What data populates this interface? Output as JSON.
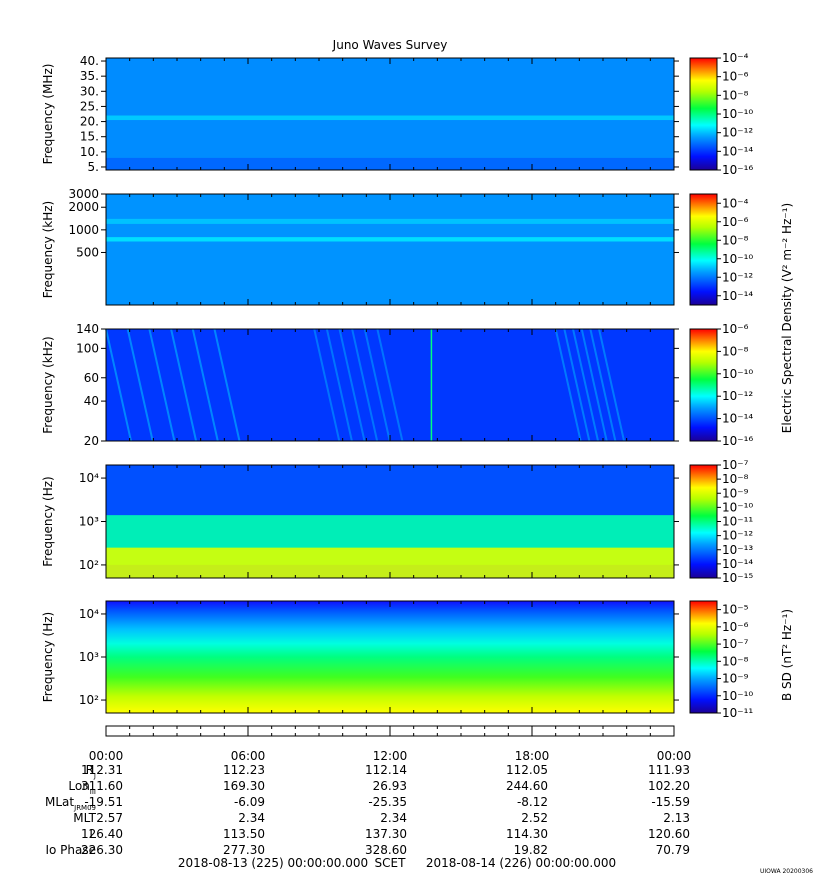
{
  "title": "Juno Waves Survey",
  "credit": "UIOWA 20200306",
  "colorbar_labels": {
    "electric": "Electric Spectral Density (V² m⁻² Hz⁻¹)",
    "magnetic": "B SD (nT² Hz⁻¹)"
  },
  "chart_data": [
    {
      "type": "heatmap",
      "panel": "HFR high (MHz)",
      "ylabel": "Frequency (MHz)",
      "y_scale": "linear",
      "ylim": [
        4,
        41
      ],
      "y_ticks": [
        40,
        35,
        30,
        25,
        20,
        15,
        10,
        5
      ],
      "y_tick_labels": [
        "40.",
        "35.",
        "30.",
        "25.",
        "20.",
        "15.",
        "10.",
        "5."
      ],
      "colorbar": {
        "scale": "log",
        "range_exp": [
          -16,
          -4
        ],
        "tick_exp": [
          -4,
          -6,
          -8,
          -10,
          -12,
          -14,
          -16
        ]
      },
      "features": [
        {
          "kind": "background",
          "level_exp": -12.7
        },
        {
          "kind": "band",
          "y_from": 20.5,
          "y_to": 22.0,
          "level_exp": -11.8
        },
        {
          "kind": "band",
          "y_from": 4.0,
          "y_to": 8.0,
          "level_exp": -13.3
        }
      ]
    },
    {
      "type": "heatmap",
      "panel": "HFR low (kHz)",
      "ylabel": "Frequency (kHz)",
      "y_scale": "log",
      "ylim": [
        100,
        3000
      ],
      "y_ticks": [
        3000,
        2000,
        1000,
        500
      ],
      "y_tick_labels": [
        "3000",
        "2000",
        "1000",
        "500"
      ],
      "colorbar": {
        "scale": "log",
        "range_exp": [
          -15,
          -3
        ],
        "tick_exp": [
          -4,
          -6,
          -8,
          -10,
          -12,
          -14
        ]
      },
      "features": [
        {
          "kind": "background",
          "level_exp": -11.6
        },
        {
          "kind": "band",
          "y_from": 1200,
          "y_to": 1400,
          "level_exp": -10.9
        },
        {
          "kind": "band",
          "y_from": 700,
          "y_to": 800,
          "level_exp": -10.5
        }
      ]
    },
    {
      "type": "heatmap",
      "panel": "LFR high (kHz)",
      "ylabel": "Frequency (kHz)",
      "y_scale": "log",
      "ylim": [
        20,
        140
      ],
      "y_ticks": [
        140,
        100,
        60,
        40,
        20
      ],
      "y_tick_labels": [
        "140",
        "100",
        "60",
        "40",
        "20"
      ],
      "colorbar": {
        "scale": "log",
        "range_exp": [
          -16,
          -6
        ],
        "tick_exp": [
          -6,
          -8,
          -10,
          -12,
          -14,
          -16
        ]
      },
      "features": [
        {
          "kind": "background",
          "level_exp": -14.3
        },
        {
          "kind": "stripes",
          "x_from_h": 0.0,
          "x_to_h": 5.5,
          "level_exp": -13.0
        },
        {
          "kind": "stripes",
          "x_from_h": 8.8,
          "x_to_h": 12.0,
          "level_exp": -13.3
        },
        {
          "kind": "line",
          "x_h": 13.75,
          "level_exp": -11.0
        },
        {
          "kind": "stripes",
          "x_from_h": 19.0,
          "x_to_h": 21.2,
          "level_exp": -13.2
        }
      ]
    },
    {
      "type": "heatmap",
      "panel": "LFR low (Hz)",
      "ylabel": "Frequency (Hz)",
      "y_scale": "log",
      "ylim": [
        50,
        20000
      ],
      "y_ticks": [
        10000,
        1000,
        100
      ],
      "y_tick_labels": [
        "10⁴",
        "10³",
        "10²"
      ],
      "colorbar": {
        "scale": "log",
        "range_exp": [
          -15,
          -7
        ],
        "tick_exp": [
          -7,
          -8,
          -9,
          -10,
          -11,
          -12,
          -13,
          -14,
          -15
        ]
      },
      "features": [
        {
          "kind": "background",
          "level_exp": -13.4
        },
        {
          "kind": "band",
          "y_from": 100,
          "y_to": 1400,
          "level_exp": -11.3
        },
        {
          "kind": "band",
          "y_from": 50,
          "y_to": 250,
          "level_exp": -9.0
        }
      ]
    },
    {
      "type": "heatmap",
      "panel": "Magnetic (Hz)",
      "ylabel": "Frequency (Hz)",
      "y_scale": "log",
      "ylim": [
        50,
        20000
      ],
      "y_ticks": [
        10000,
        1000,
        100
      ],
      "y_tick_labels": [
        "10⁴",
        "10³",
        "10²"
      ],
      "colorbar": {
        "scale": "log",
        "range_exp": [
          -11,
          -4.5
        ],
        "tick_exp": [
          -5,
          -6,
          -7,
          -8,
          -9,
          -10,
          -11
        ]
      },
      "features": [
        {
          "kind": "gradient",
          "y_from": 20000,
          "y_to": 50,
          "level_from_exp": -10.7,
          "level_to_exp": -6.2
        }
      ]
    }
  ],
  "x_axis": {
    "tick_labels": [
      "00:00",
      "06:00",
      "12:00",
      "18:00",
      "00:00"
    ],
    "hours": [
      0,
      6,
      12,
      18,
      24
    ]
  },
  "ephemeris": {
    "labels": [
      "R",
      "Lon",
      "MLat",
      "MLT",
      "L",
      "Io Phase"
    ],
    "label_subscripts": [
      "J",
      "III",
      "JRM09",
      "",
      "",
      ""
    ],
    "rows": [
      [
        "112.31",
        "112.23",
        "112.14",
        "112.05",
        "111.93"
      ],
      [
        "311.60",
        "169.30",
        "26.93",
        "244.60",
        "102.20"
      ],
      [
        "-19.51",
        "-6.09",
        "-25.35",
        "-8.12",
        "-15.59"
      ],
      [
        "2.57",
        "2.34",
        "2.34",
        "2.52",
        "2.13"
      ],
      [
        "126.40",
        "113.50",
        "137.30",
        "114.30",
        "120.60"
      ],
      [
        "226.30",
        "277.30",
        "328.60",
        "19.82",
        "70.79"
      ]
    ]
  },
  "footer": {
    "start": "2018-08-13 (225) 00:00:00.000",
    "scet": "SCET",
    "end": "2018-08-14 (226) 00:00:00.000"
  }
}
